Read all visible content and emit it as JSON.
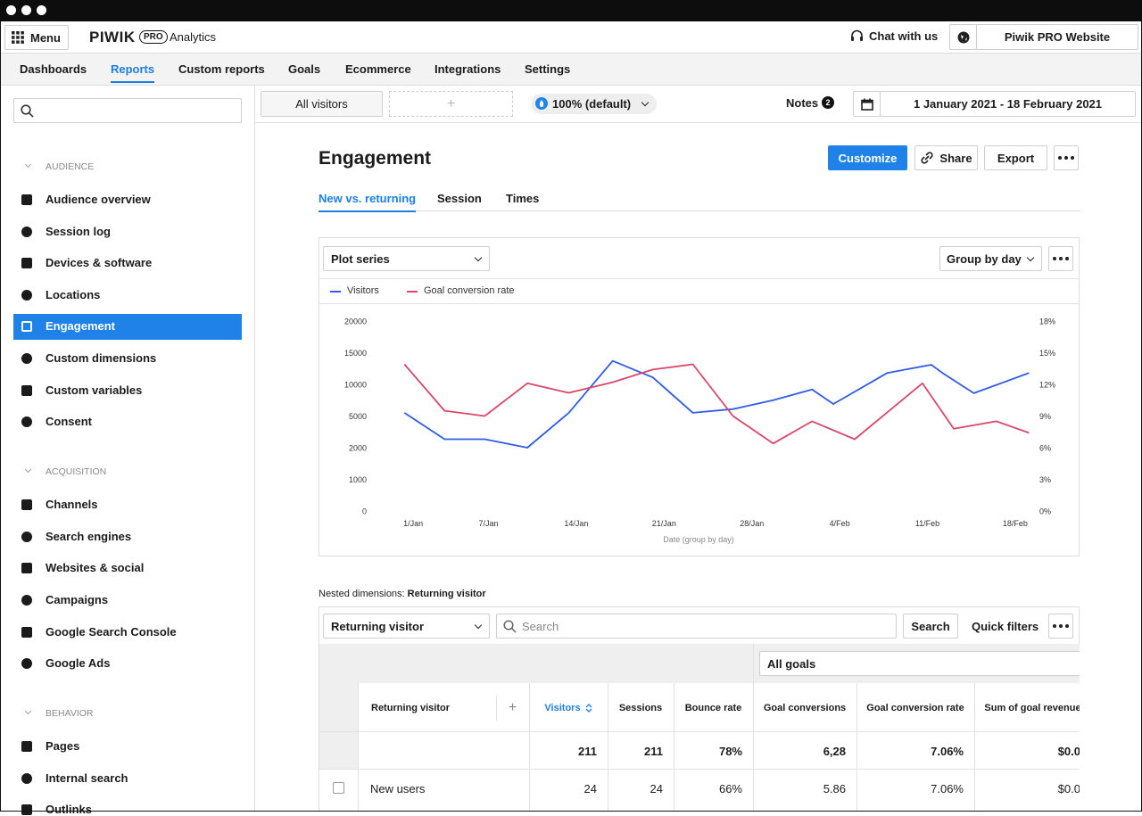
{
  "header": {
    "menu": "Menu",
    "logo": "PIWIK",
    "logo_badge": "PRO",
    "product": "Analytics",
    "chat": "Chat with us",
    "website": "Piwik PRO Website"
  },
  "nav": {
    "items": [
      "Dashboards",
      "Reports",
      "Custom reports",
      "Goals",
      "Ecommerce",
      "Integrations",
      "Settings"
    ],
    "active_index": 1
  },
  "toolbar": {
    "segment": "All visitors",
    "add_segment": "+",
    "sampling": "100% (default)",
    "notes": "Notes",
    "notes_count": 2,
    "date_range": "1 January 2021 - 18 February 2021"
  },
  "sidebar": {
    "active_section": 0,
    "active_item": 4,
    "sections": [
      {
        "title": "AUDIENCE",
        "items": [
          "Audience overview",
          "Session log",
          "Devices & software",
          "Locations",
          "Engagement",
          "Custom dimensions",
          "Custom variables",
          "Consent"
        ]
      },
      {
        "title": "ACQUISITION",
        "items": [
          "Channels",
          "Search engines",
          "Websites & social",
          "Campaigns",
          "Google Search Console",
          "Google Ads"
        ]
      },
      {
        "title": "BEHAVIOR",
        "items": [
          "Pages",
          "Internal search",
          "Outlinks"
        ]
      }
    ]
  },
  "page": {
    "title": "Engagement",
    "buttons": [
      "Customize",
      "Share",
      "Export"
    ],
    "tabs": [
      "New vs. returning",
      "Session",
      "Times"
    ],
    "active_tab": 0
  },
  "chart_card": {
    "plot_select": "Plot series",
    "group_select": "Group by day"
  },
  "chart_data": {
    "type": "line",
    "xlabel": "Date (group by day)",
    "xlim": [
      -2,
      50.5
    ],
    "xticks": [
      {
        "value": 1,
        "label": "1/Jan"
      },
      {
        "value": 7,
        "label": "7/Jan"
      },
      {
        "value": 14,
        "label": "14/Jan"
      },
      {
        "value": 21,
        "label": "21/Jan"
      },
      {
        "value": 28,
        "label": "28/Jan"
      },
      {
        "value": 35,
        "label": "4/Feb"
      },
      {
        "value": 42,
        "label": "11/Feb"
      },
      {
        "value": 49,
        "label": "18/Feb"
      }
    ],
    "ylim": [
      0,
      20000
    ],
    "yticks": [
      0,
      1000,
      2000,
      5000,
      10000,
      15000,
      20000
    ],
    "y2lim": [
      0,
      18
    ],
    "y2ticks": [
      {
        "value": 0,
        "label": "0%"
      },
      {
        "value": 3,
        "label": "3%"
      },
      {
        "value": 6,
        "label": "6%"
      },
      {
        "value": 9,
        "label": "9%"
      },
      {
        "value": 12,
        "label": "12%"
      },
      {
        "value": 15,
        "label": "15%"
      },
      {
        "value": 18,
        "label": "18%"
      }
    ],
    "series": [
      {
        "name": "Visitors",
        "color": "#2f5be6",
        "x": [
          0.3,
          3.5,
          6.7,
          10.1,
          13.4,
          16.9,
          20.1,
          23.3,
          26.5,
          29.7,
          32.8,
          34.5,
          38.8,
          42.3,
          43.2,
          45.7,
          50.1
        ],
        "values": [
          5500,
          2800,
          2800,
          2000,
          5500,
          13700,
          11100,
          5500,
          6100,
          7500,
          9200,
          6900,
          11800,
          13100,
          11800,
          8600,
          11800
        ]
      },
      {
        "name": "Goal conversion rate",
        "color": "#d9476b",
        "axis": "y2",
        "x": [
          0.3,
          3.5,
          6.7,
          10.1,
          13.4,
          16.9,
          20.1,
          23.3,
          26.5,
          29.7,
          32.8,
          36.2,
          41.6,
          44.1,
          47.5,
          50.1
        ],
        "values": [
          13.9,
          9.5,
          9.0,
          12.1,
          11.2,
          12.2,
          13.4,
          13.9,
          9.0,
          6.4,
          8.5,
          6.8,
          12.1,
          7.8,
          8.5,
          7.4
        ]
      }
    ]
  },
  "nested": {
    "label": "Nested dimensions:",
    "value": "Returning visitor"
  },
  "table_controls": {
    "dimension": "Returning visitor",
    "search_placeholder": "Search",
    "search_button": "Search",
    "quick_filters": "Quick filters",
    "goal_select": "All goals"
  },
  "table": {
    "columns": [
      "Returning visitor",
      "Visitors",
      "Sessions",
      "Bounce rate",
      "Goal conversions",
      "Goal conversion rate",
      "Sum of goal revenue"
    ],
    "add_column": "+",
    "sorted_column": 1,
    "totals": [
      "211",
      "211",
      "78%",
      "6,28",
      "7.06%",
      "$0.0"
    ],
    "rows": [
      [
        "New users",
        "24",
        "24",
        "66%",
        "5.86",
        "7.06%",
        "$0.0"
      ]
    ]
  }
}
